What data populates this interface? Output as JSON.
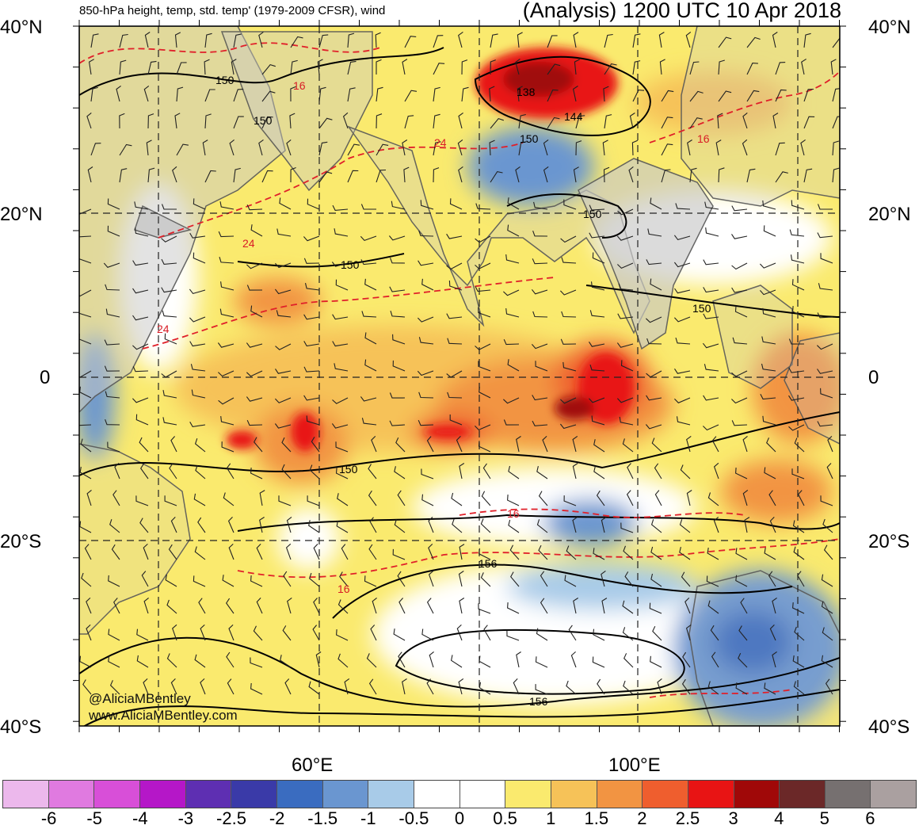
{
  "header": {
    "subtitle": "850-hPa height, temp, std. temp' (1979-2009 CFSR), wind",
    "title": "(Analysis) 1200 UTC 10 Apr 2018"
  },
  "latitude_labels": [
    "40°N",
    "20°N",
    "0",
    "20°S",
    "40°S"
  ],
  "longitude_labels": [
    "60°E",
    "100°E"
  ],
  "credits": [
    "@AliciaMBentley",
    "www.AliciaMBentley.com"
  ],
  "contour_labels": {
    "height": [
      "150",
      "150",
      "150",
      "150",
      "150",
      "150",
      "150",
      "138",
      "144",
      "156",
      "156"
    ],
    "temperature": [
      "16",
      "24",
      "24",
      "24",
      "16",
      "16",
      "16"
    ]
  },
  "legend": {
    "labels": [
      "-6",
      "-5",
      "-4",
      "-3",
      "-2.5",
      "-2",
      "-1.5",
      "-1",
      "-0.5",
      "0",
      "0.5",
      "1",
      "1.5",
      "2",
      "2.5",
      "3",
      "4",
      "5",
      "6"
    ],
    "colors": [
      "#ecb8ec",
      "#e07ae0",
      "#d84fd8",
      "#b517c8",
      "#5e2fb2",
      "#3a3aa8",
      "#3a6cc0",
      "#6a96d0",
      "#a8cbe8",
      "#ffffff",
      "#ffffff",
      "#faea6e",
      "#f6c258",
      "#f29442",
      "#ef5e2e",
      "#e81414",
      "#a00808",
      "#6b2828",
      "#767070",
      "#aaa0a0"
    ]
  },
  "map_colors": {
    "land": "#c8c8c8",
    "coast": "#5a5a5a",
    "contour": "#000000",
    "temp_contour": "#e0202a"
  }
}
